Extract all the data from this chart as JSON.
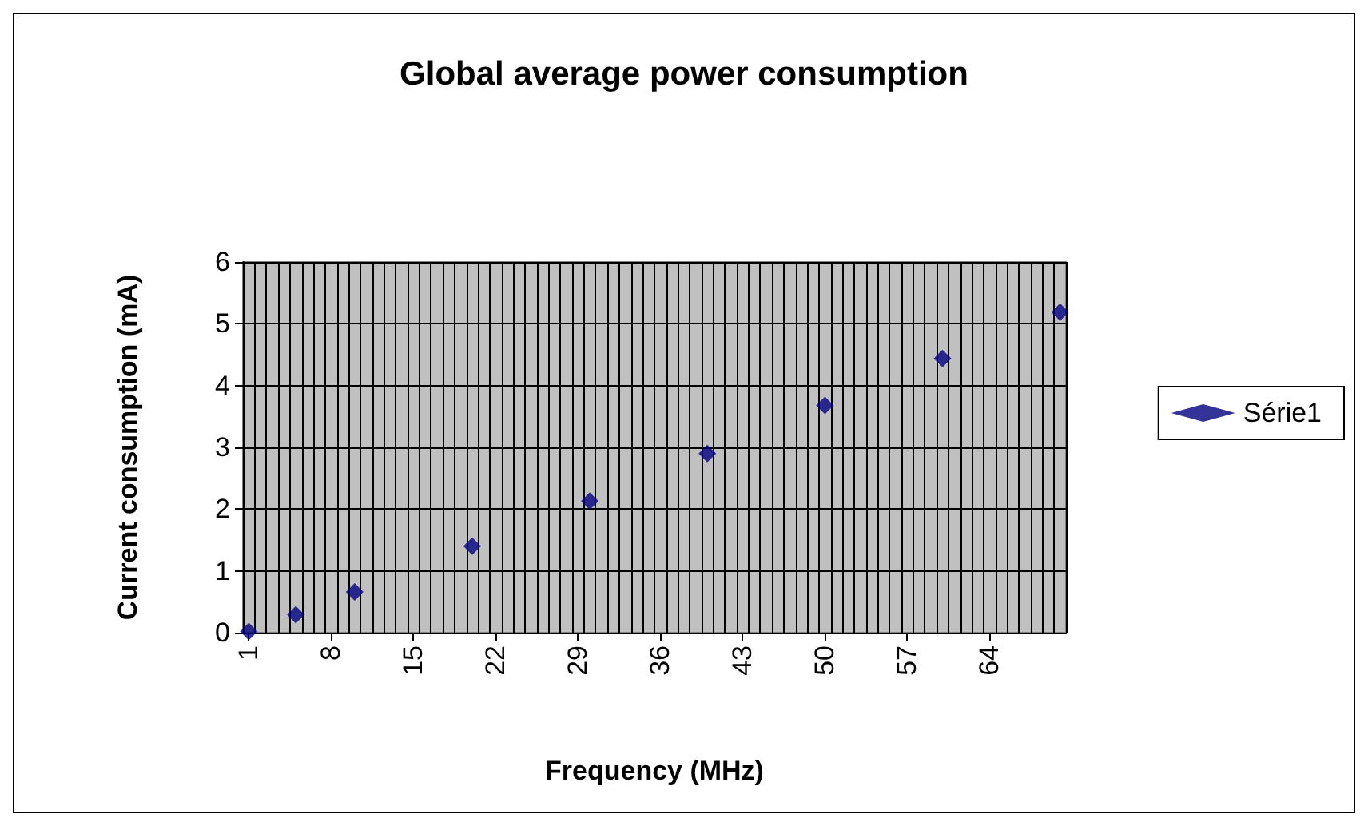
{
  "chart_data": {
    "type": "scatter",
    "title": "Global average power consumption",
    "xlabel": "Frequency (MHz)",
    "ylabel": "Current consumption (mA)",
    "x": [
      1,
      5,
      10,
      20,
      30,
      40,
      50,
      60,
      70
    ],
    "series": [
      {
        "name": "Série1",
        "color": "#000080",
        "values": [
          0.02,
          0.29,
          0.66,
          1.4,
          2.13,
          2.9,
          3.68,
          4.44,
          5.19
        ]
      }
    ],
    "xlim": [
      0.5,
      70.5
    ],
    "xticks": [
      1,
      8,
      15,
      22,
      29,
      36,
      43,
      50,
      57,
      64
    ],
    "ylim": [
      0,
      6
    ],
    "yticks": [
      0,
      1,
      2,
      3,
      4,
      5,
      6
    ],
    "grid": true,
    "legend": "right",
    "marker": "diamond"
  }
}
